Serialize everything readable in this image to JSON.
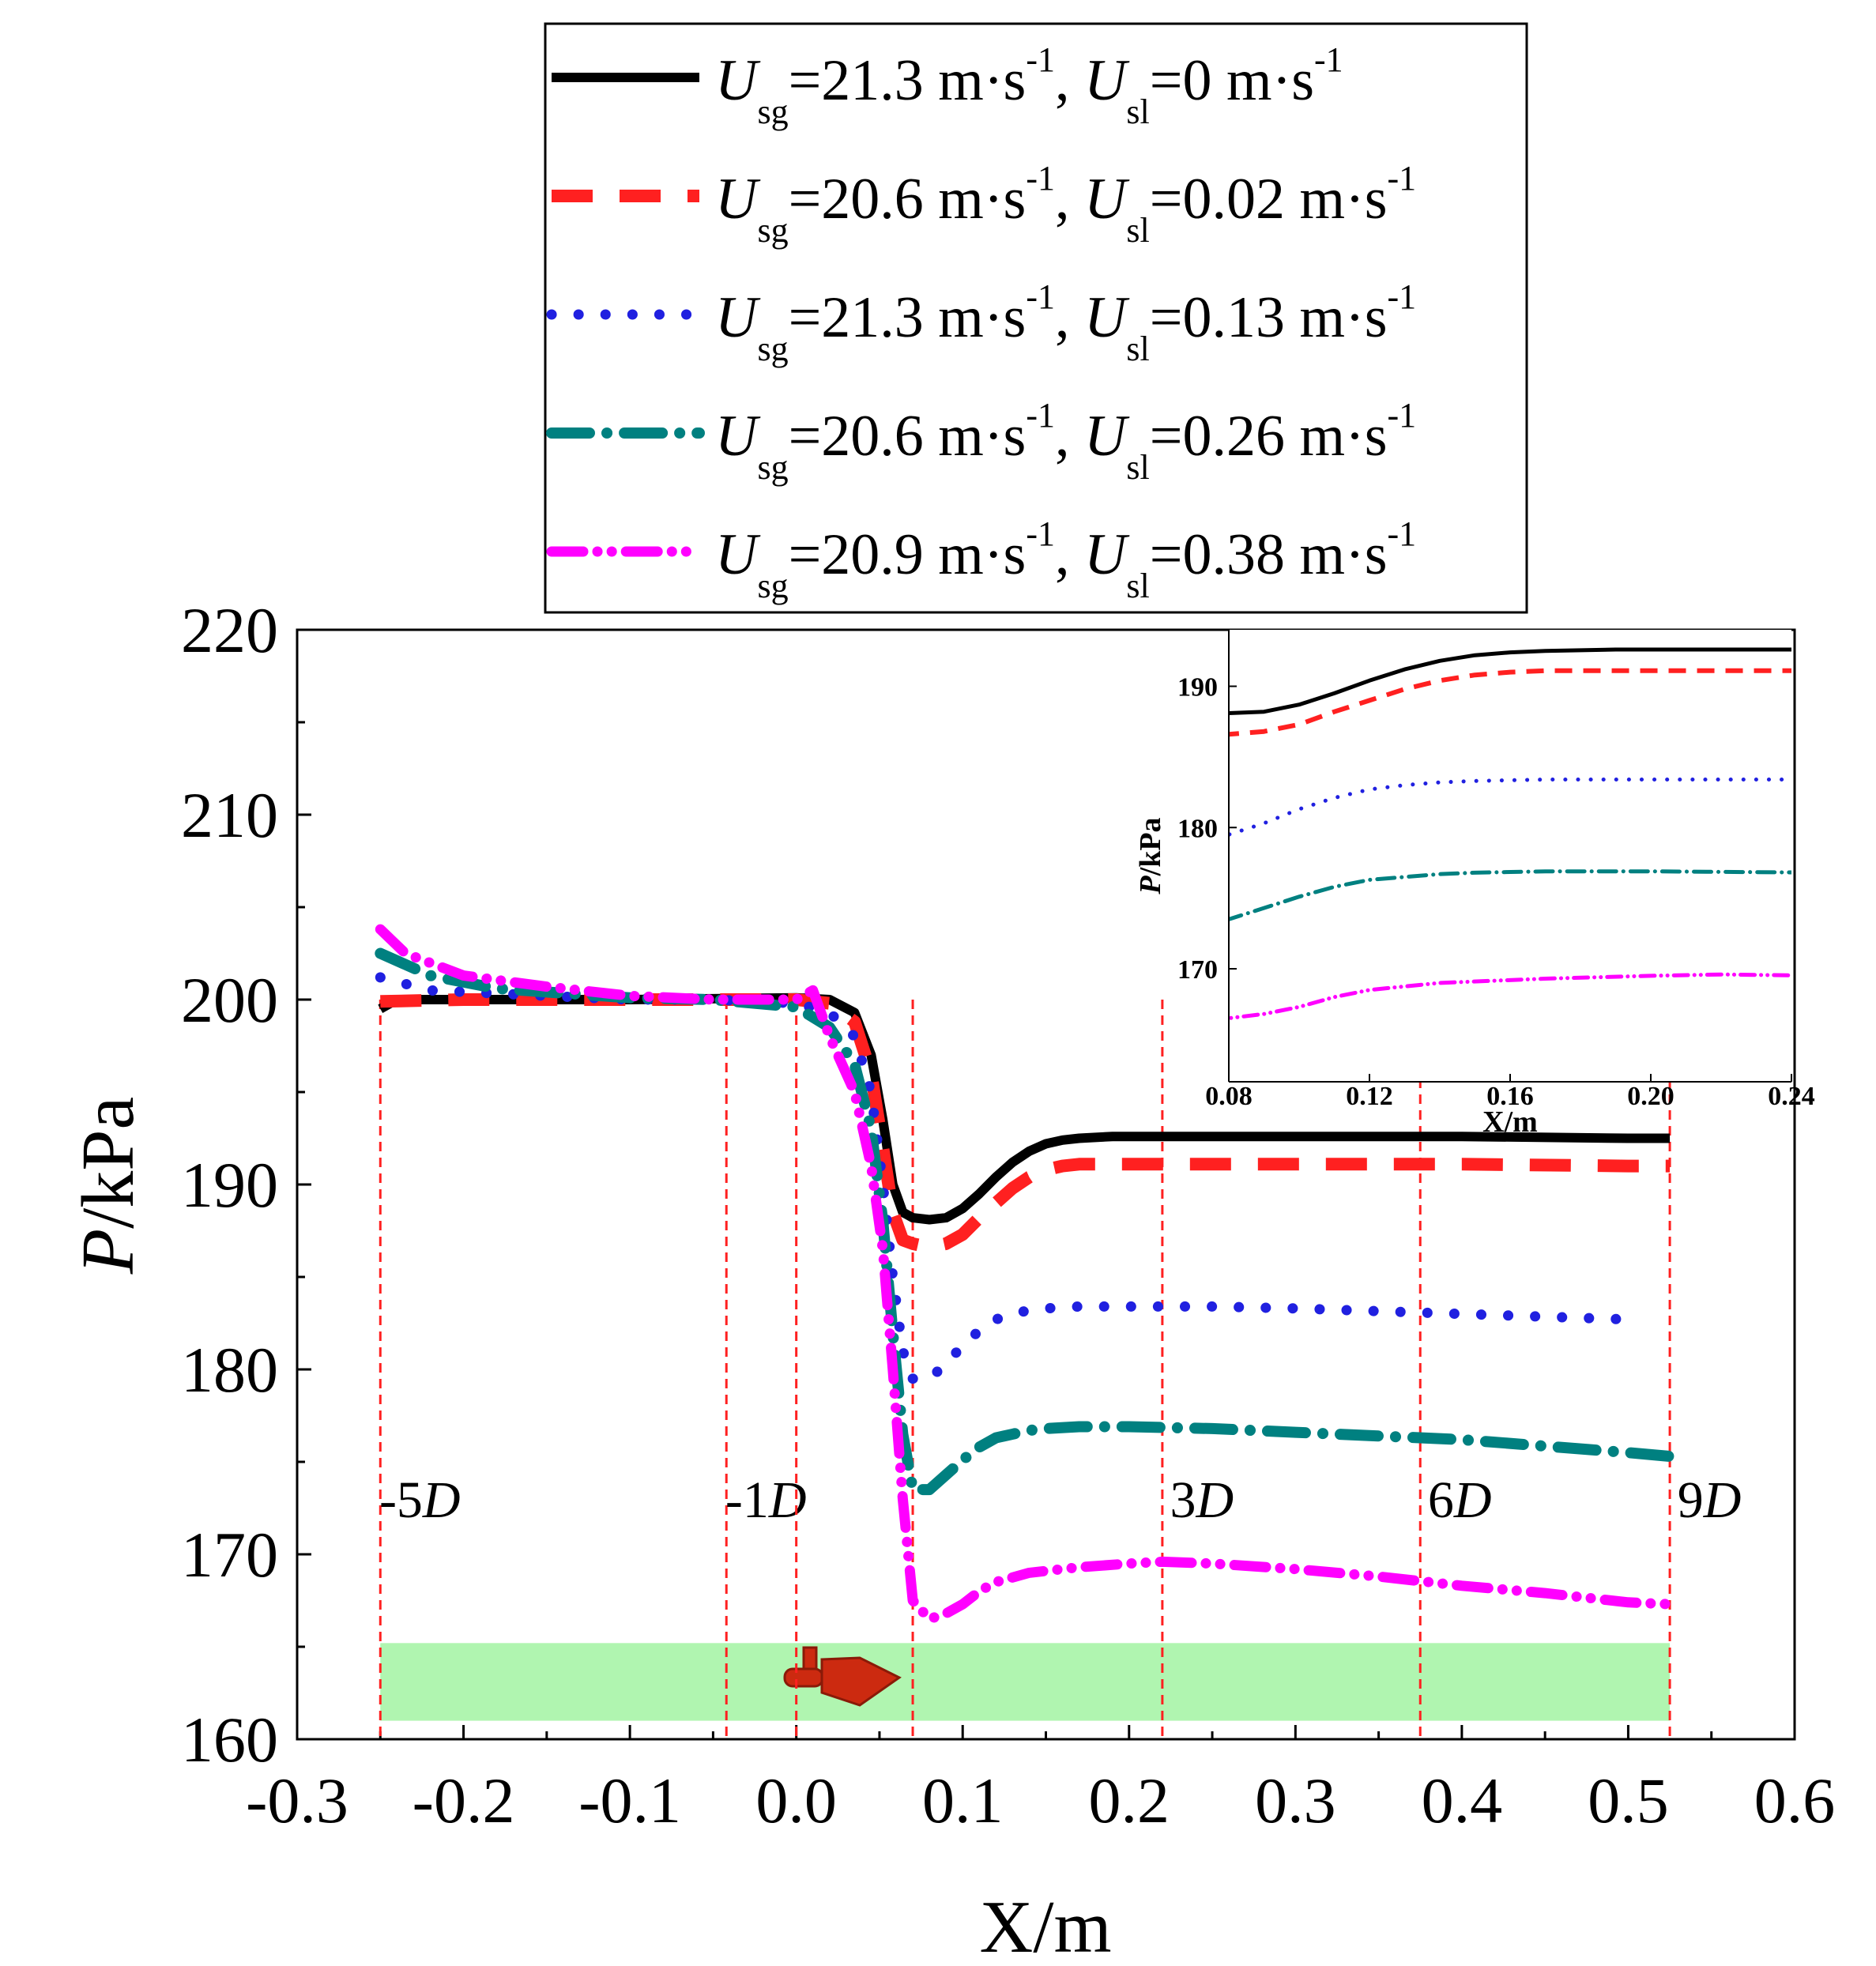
{
  "chart_data": {
    "type": "line",
    "xlabel": "X/m",
    "ylabel_italic": "P",
    "ylabel_unit": "/kPa",
    "xlim": [
      -0.3,
      0.6
    ],
    "ylim": [
      160,
      220
    ],
    "xticks": [
      "-0.3",
      "-0.2",
      "-0.1",
      "0.0",
      "0.1",
      "0.2",
      "0.3",
      "0.4",
      "0.5",
      "0.6"
    ],
    "yticks": [
      "160",
      "170",
      "180",
      "190",
      "200",
      "210",
      "220"
    ],
    "legend": [
      {
        "ug": "21.3",
        "ul": "0"
      },
      {
        "ug": "20.6",
        "ul": "0.02"
      },
      {
        "ug": "21.3",
        "ul": "0.13"
      },
      {
        "ug": "20.6",
        "ul": "0.26"
      },
      {
        "ug": "20.9",
        "ul": "0.38 "
      }
    ],
    "legend_text": {
      "U": "U",
      "sg": "sg",
      "sl": "sl",
      "eq": "=",
      "unit": " m·s",
      "exp": "-1",
      "sep": ", "
    },
    "markers": [
      {
        "x": -0.25,
        "label": "-5",
        "suffix": "D"
      },
      {
        "x": -0.042,
        "label": "-1",
        "suffix": ""
      },
      {
        "x": 0.0,
        "label": "",
        "suffix": ""
      },
      {
        "x": 0.07,
        "label": "",
        "suffix": ""
      },
      {
        "x": 0.22,
        "label": "3",
        "suffix": "D"
      },
      {
        "x": 0.375,
        "label": "6",
        "suffix": "D"
      },
      {
        "x": 0.525,
        "label": "9",
        "suffix": "D"
      }
    ],
    "minus1_D": "D",
    "pipe_band": [
      161.0,
      165.2
    ],
    "series": [
      {
        "name": "Usg=21.3, Usl=0",
        "color": "#000000",
        "style": "solid",
        "x": [
          -0.25,
          -0.24,
          -0.2,
          -0.1,
          0.0,
          0.02,
          0.035,
          0.045,
          0.052,
          0.058,
          0.064,
          0.07,
          0.08,
          0.09,
          0.1,
          0.11,
          0.12,
          0.13,
          0.14,
          0.15,
          0.16,
          0.17,
          0.19,
          0.22,
          0.3,
          0.4,
          0.5,
          0.525
        ],
        "y": [
          199.5,
          200.0,
          200.0,
          200.0,
          200.1,
          200.0,
          199.3,
          197.0,
          193.5,
          190.0,
          188.5,
          188.2,
          188.1,
          188.2,
          188.7,
          189.5,
          190.4,
          191.2,
          191.8,
          192.2,
          192.4,
          192.5,
          192.6,
          192.6,
          192.6,
          192.6,
          192.5,
          192.5
        ]
      },
      {
        "name": "Usg=20.6, Usl=0.02",
        "color": "#ff2020",
        "style": "dash",
        "x": [
          -0.25,
          -0.2,
          -0.1,
          -0.04,
          0.0,
          0.02,
          0.035,
          0.045,
          0.052,
          0.058,
          0.064,
          0.07,
          0.08,
          0.09,
          0.1,
          0.11,
          0.12,
          0.13,
          0.14,
          0.15,
          0.16,
          0.17,
          0.19,
          0.22,
          0.3,
          0.4,
          0.5,
          0.525
        ],
        "y": [
          199.9,
          200.0,
          200.0,
          200.0,
          200.0,
          199.8,
          198.8,
          196.0,
          192.0,
          188.5,
          187.0,
          186.8,
          186.6,
          186.8,
          187.3,
          188.2,
          189.0,
          189.8,
          190.4,
          190.8,
          191.0,
          191.1,
          191.1,
          191.1,
          191.1,
          191.1,
          191.0,
          191.0
        ]
      },
      {
        "name": "Usg=21.3, Usl=0.13",
        "color": "#2020e0",
        "style": "dot",
        "x": [
          -0.25,
          -0.22,
          -0.15,
          -0.1,
          -0.05,
          0.0,
          0.02,
          0.035,
          0.045,
          0.052,
          0.058,
          0.064,
          0.07,
          0.08,
          0.09,
          0.1,
          0.11,
          0.12,
          0.13,
          0.14,
          0.15,
          0.17,
          0.2,
          0.25,
          0.3,
          0.4,
          0.5
        ],
        "y": [
          201.2,
          200.5,
          200.2,
          200.0,
          200.0,
          199.8,
          199.3,
          198.0,
          195.0,
          190.0,
          185.0,
          181.0,
          179.5,
          179.5,
          180.3,
          181.3,
          182.1,
          182.7,
          183.0,
          183.2,
          183.3,
          183.4,
          183.4,
          183.4,
          183.3,
          183.0,
          182.7
        ]
      },
      {
        "name": "Usg=20.6, Usl=0.26",
        "color": "#008080",
        "style": "dashdot",
        "x": [
          -0.25,
          -0.22,
          -0.18,
          -0.1,
          -0.05,
          0.0,
          0.02,
          0.035,
          0.045,
          0.052,
          0.058,
          0.064,
          0.07,
          0.08,
          0.09,
          0.1,
          0.11,
          0.12,
          0.13,
          0.14,
          0.15,
          0.17,
          0.2,
          0.25,
          0.3,
          0.4,
          0.5,
          0.525
        ],
        "y": [
          202.5,
          201.3,
          200.6,
          200.1,
          200.0,
          199.6,
          198.5,
          196.5,
          193.0,
          188.0,
          182.0,
          176.5,
          173.5,
          173.5,
          174.3,
          175.1,
          175.8,
          176.3,
          176.5,
          176.7,
          176.8,
          176.9,
          176.9,
          176.8,
          176.6,
          176.2,
          175.5,
          175.3
        ]
      },
      {
        "name": "Usg=20.9, Usl=0.38",
        "color": "#ff00ff",
        "style": "dashdotdot",
        "x": [
          -0.25,
          -0.235,
          -0.2,
          -0.15,
          -0.1,
          -0.05,
          -0.02,
          0.0,
          0.01,
          0.02,
          0.035,
          0.045,
          0.052,
          0.058,
          0.064,
          0.07,
          0.08,
          0.09,
          0.1,
          0.11,
          0.12,
          0.14,
          0.17,
          0.2,
          0.22,
          0.25,
          0.3,
          0.35,
          0.4,
          0.45,
          0.5,
          0.525
        ],
        "y": [
          203.8,
          202.5,
          201.3,
          200.7,
          200.2,
          200.0,
          200.0,
          200.0,
          200.5,
          198.0,
          195.0,
          191.0,
          186.5,
          180.0,
          173.0,
          167.5,
          166.5,
          166.8,
          167.3,
          168.0,
          168.5,
          169.0,
          169.3,
          169.5,
          169.6,
          169.5,
          169.2,
          168.8,
          168.3,
          167.9,
          167.4,
          167.3
        ]
      }
    ],
    "inset": {
      "xlabel": "X/m",
      "ylabel_italic": "P",
      "ylabel_unit": "/kPa",
      "xlim": [
        0.08,
        0.24
      ],
      "ylim": [
        162,
        194
      ],
      "xticks": [
        "0.08",
        "0.12",
        "0.16",
        "0.20",
        "0.24"
      ],
      "yticks": [
        "170",
        "180",
        "190"
      ]
    }
  }
}
